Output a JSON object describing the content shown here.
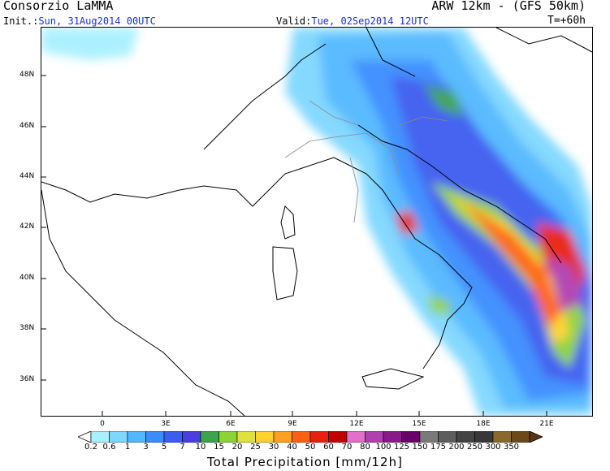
{
  "header": {
    "org": "Consorzio LaMMA",
    "model": "ARW 12km - (GFS 50km)",
    "init_label": "Init.:",
    "init_value": "Sun, 31Aug2014 00UTC",
    "valid_label": "Valid:",
    "valid_value": "Tue, 02Sep2014 12UTC",
    "step": "T=+60h"
  },
  "axes": {
    "lat_ticks": [
      "48N",
      "46N",
      "44N",
      "42N",
      "40N",
      "38N",
      "36N"
    ],
    "lon_ticks": [
      "0",
      "3E",
      "6E",
      "9E",
      "12E",
      "15E",
      "18E",
      "21E"
    ]
  },
  "colors": {
    "accent_text": "#1a2fd6",
    "scale": [
      "#a8f0ff",
      "#7fd7ff",
      "#53b8ff",
      "#3a8cff",
      "#3d5cf0",
      "#4a3ee0",
      "#3ea34a",
      "#8ed23a",
      "#dfe23a",
      "#ffd230",
      "#ffa020",
      "#ff6010",
      "#e82010",
      "#c00000",
      "#e070c8",
      "#b040b0",
      "#8a1a8a",
      "#6a006a",
      "#7a7a7a",
      "#5e5e5e",
      "#444444",
      "#383838",
      "#8a6a2a",
      "#6a4a1a",
      "#4a2e0e",
      "#5a3412"
    ]
  },
  "legend": {
    "title": "Total Precipitation [mm/12h]",
    "labels": [
      "0.2",
      "0.6",
      "1",
      "3",
      "5",
      "7",
      "10",
      "15",
      "20",
      "25",
      "30",
      "40",
      "50",
      "60",
      "70",
      "80",
      "100",
      "125",
      "150",
      "175",
      "200",
      "250",
      "300",
      "350"
    ]
  }
}
